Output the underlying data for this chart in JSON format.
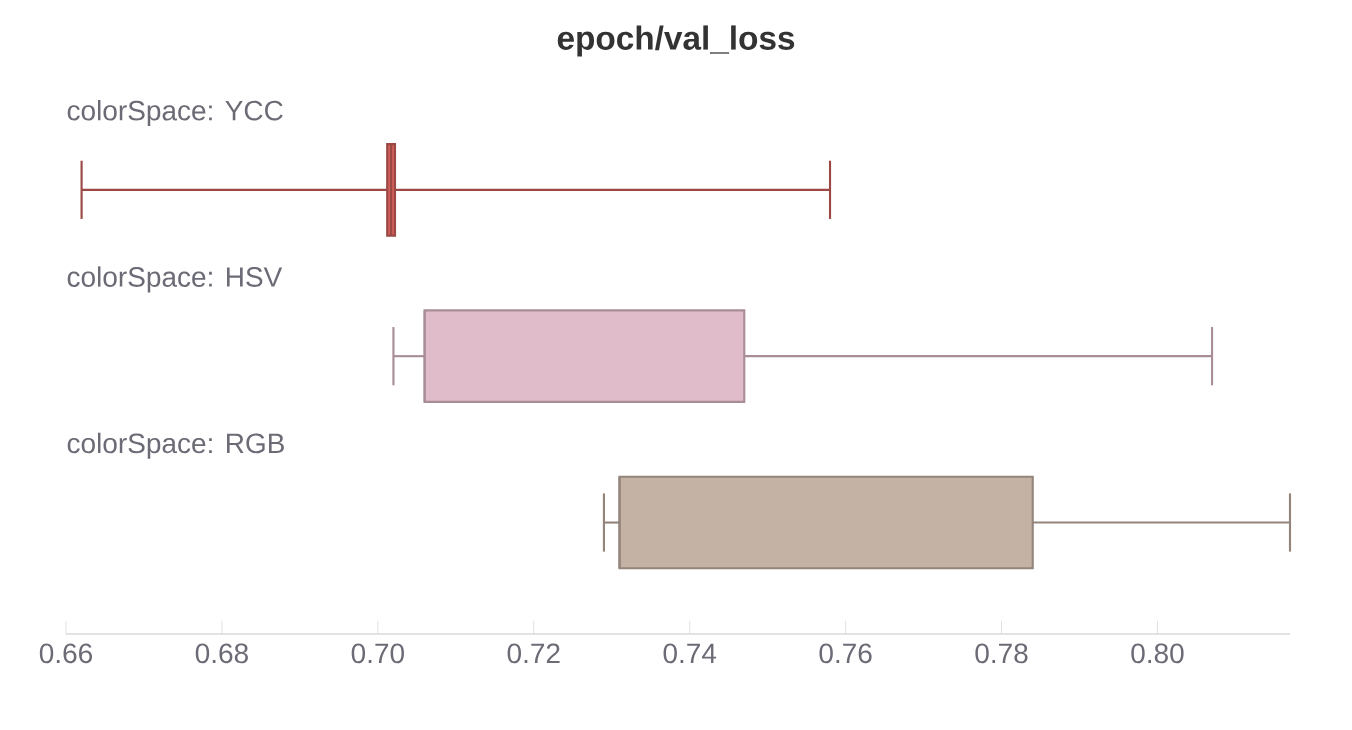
{
  "chart_data": {
    "type": "box",
    "orientation": "horizontal",
    "title": "epoch/val_loss",
    "categories": [
      "colorSpace: YCC",
      "colorSpace: HSV",
      "colorSpace: RGB"
    ],
    "colors": [
      "#d0605a",
      "#e0bccb",
      "#c4b2a5"
    ],
    "boxes": [
      {
        "low": 0.662,
        "q1": 0.7012,
        "median": 0.7017,
        "q3": 0.7022,
        "high": 0.758
      },
      {
        "low": 0.702,
        "q1": 0.706,
        "median": 0.706,
        "q3": 0.747,
        "high": 0.807
      },
      {
        "low": 0.729,
        "q1": 0.731,
        "median": 0.731,
        "q3": 0.784,
        "high": 0.817
      }
    ],
    "xlim": [
      0.66,
      0.817
    ],
    "xticks": [
      {
        "value": 0.66,
        "label": "0.66"
      },
      {
        "value": 0.68,
        "label": "0.68"
      },
      {
        "value": 0.7,
        "label": "0.70"
      },
      {
        "value": 0.72,
        "label": "0.72"
      },
      {
        "value": 0.74,
        "label": "0.74"
      },
      {
        "value": 0.76,
        "label": "0.76"
      },
      {
        "value": 0.78,
        "label": "0.78"
      },
      {
        "value": 0.8,
        "label": "0.80"
      }
    ],
    "grid": false
  }
}
